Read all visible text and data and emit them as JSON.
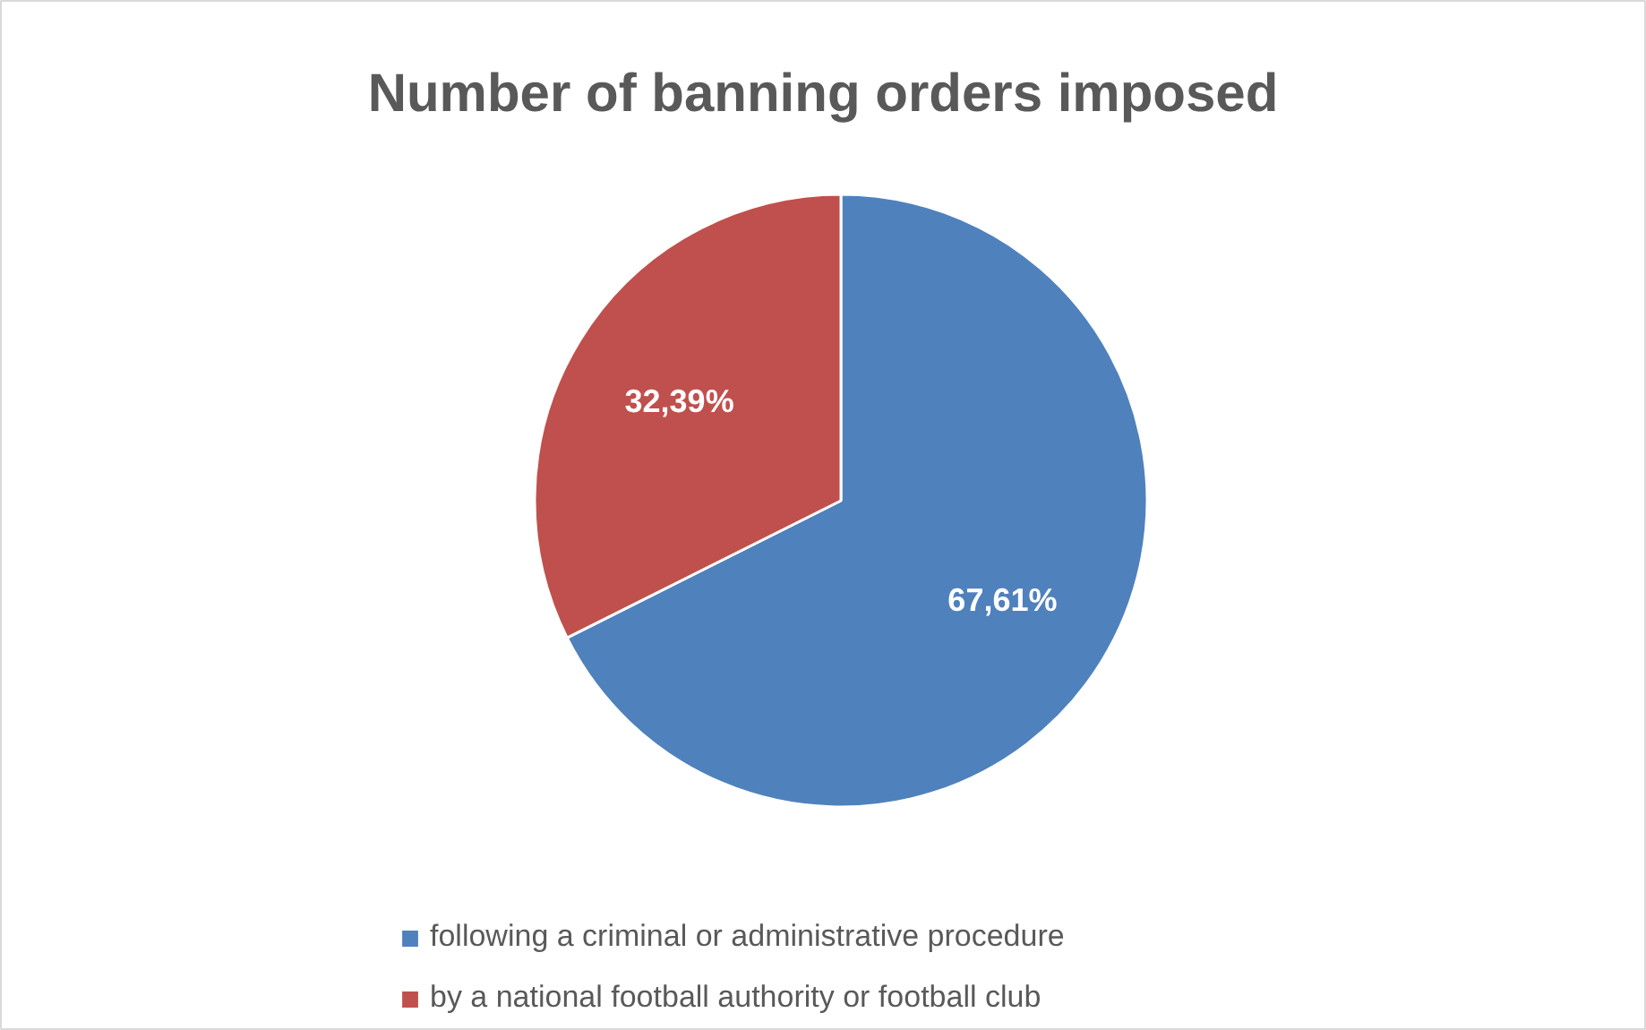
{
  "chart_data": {
    "type": "pie",
    "title": "Number of banning orders imposed",
    "categories": [
      "following a criminal or administrative procedure",
      "by a national football authority or football club"
    ],
    "values": [
      67.61,
      32.39
    ],
    "colors": [
      "#4f81bd",
      "#c0504d"
    ],
    "value_labels": [
      "67,61%",
      "32,39%"
    ],
    "legend": "bottom"
  }
}
